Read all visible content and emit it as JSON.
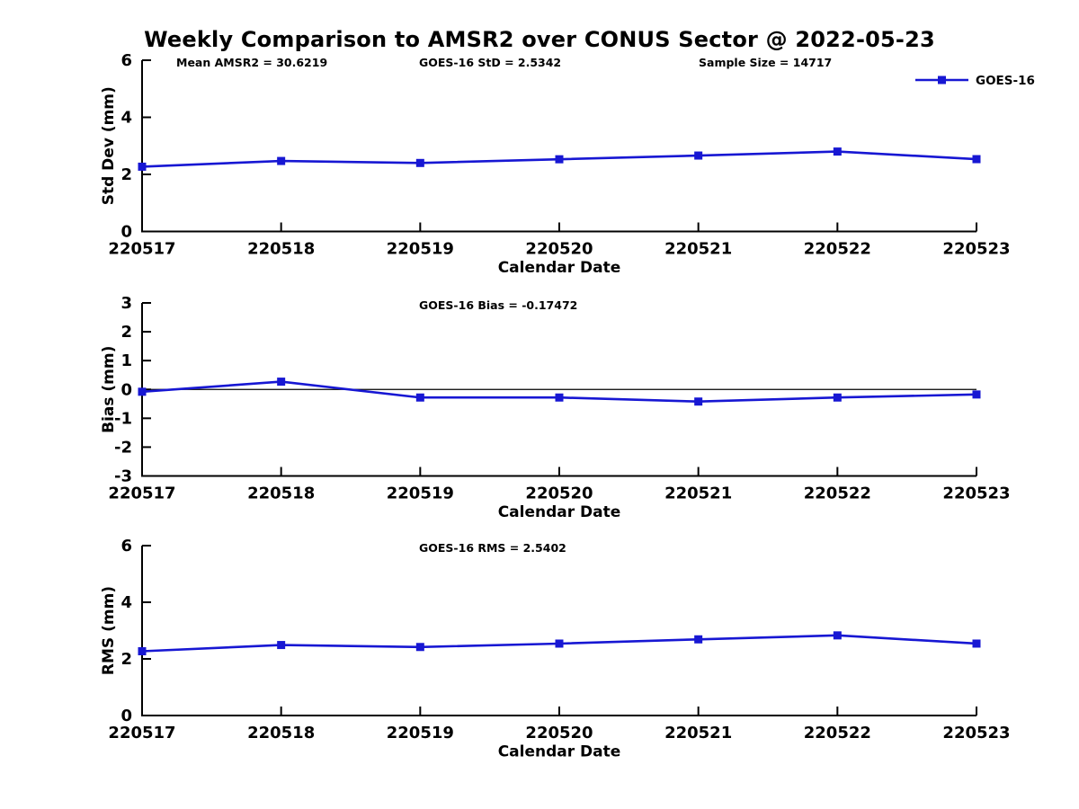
{
  "title": "Weekly Comparison to AMSR2 over CONUS Sector @ 2022-05-23",
  "colors": {
    "line": "#1717d3",
    "text": "#000000",
    "axis": "#000000",
    "background": "#ffffff"
  },
  "legend": {
    "label": "GOES-16",
    "position": "top-right",
    "marker": "square"
  },
  "chart_data": [
    {
      "type": "line",
      "name": "std-dev-chart",
      "stats": [
        "Mean AMSR2 = 30.6219",
        "GOES-16 StD = 2.5342",
        "Sample Size = 14717"
      ],
      "xlabel": "Calendar Date",
      "ylabel": "Std Dev (mm)",
      "categories": [
        "220517",
        "220518",
        "220519",
        "220520",
        "220521",
        "220522",
        "220523"
      ],
      "series": [
        {
          "name": "GOES-16",
          "values": [
            2.27,
            2.47,
            2.4,
            2.53,
            2.66,
            2.8,
            2.5342
          ]
        }
      ],
      "ylim": [
        0,
        6
      ],
      "yticks": [
        0,
        2,
        4,
        6
      ],
      "grid": false,
      "zero_line": false,
      "show_legend": true
    },
    {
      "type": "line",
      "name": "bias-chart",
      "stats": [
        "GOES-16 Bias  = -0.17472"
      ],
      "xlabel": "Calendar Date",
      "ylabel": "Bias (mm)",
      "categories": [
        "220517",
        "220518",
        "220519",
        "220520",
        "220521",
        "220522",
        "220523"
      ],
      "series": [
        {
          "name": "GOES-16",
          "values": [
            -0.08,
            0.27,
            -0.28,
            -0.28,
            -0.42,
            -0.28,
            -0.17472
          ]
        }
      ],
      "ylim": [
        -3,
        3
      ],
      "yticks": [
        -3,
        -2,
        -1,
        0,
        1,
        2,
        3
      ],
      "grid": false,
      "zero_line": true,
      "show_legend": false
    },
    {
      "type": "line",
      "name": "rms-chart",
      "stats": [
        "GOES-16 RMS = 2.5402"
      ],
      "xlabel": "Calendar Date",
      "ylabel": "RMS (mm)",
      "categories": [
        "220517",
        "220518",
        "220519",
        "220520",
        "220521",
        "220522",
        "220523"
      ],
      "series": [
        {
          "name": "GOES-16",
          "values": [
            2.27,
            2.49,
            2.42,
            2.54,
            2.69,
            2.83,
            2.5402
          ]
        }
      ],
      "ylim": [
        0,
        6
      ],
      "yticks": [
        0,
        2,
        4,
        6
      ],
      "grid": false,
      "zero_line": false,
      "show_legend": false
    }
  ]
}
